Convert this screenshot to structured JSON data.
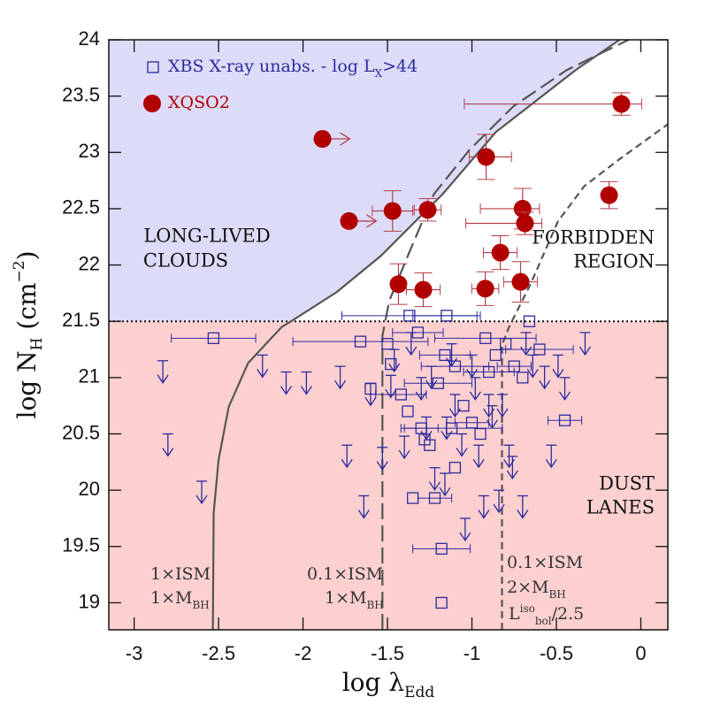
{
  "chart_data": {
    "type": "scatter",
    "x_label": [
      {
        "text": "log λ"
      },
      {
        "text": "Edd",
        "shift": "sub"
      }
    ],
    "y_label": [
      {
        "text": "log N"
      },
      {
        "text": "H",
        "shift": "sub"
      },
      {
        "text": " (cm"
      },
      {
        "text": "−2",
        "shift": "sup"
      },
      {
        "text": ")"
      }
    ],
    "xlim": [
      -3.15,
      0.16
    ],
    "ylim": [
      18.76,
      24
    ],
    "xticks": [
      -3,
      -2.5,
      -2,
      -1.5,
      -1,
      -0.5,
      0
    ],
    "yticks": [
      19,
      19.5,
      20,
      20.5,
      21,
      21.5,
      22,
      22.5,
      23,
      23.5,
      24
    ],
    "hline": 21.5,
    "upper_region_color": "#dcdcf8",
    "lower_region_color": "#fdd0d0",
    "series": [
      {
        "name": [
          {
            "text": "XBS X-ray unabs. - log L"
          },
          {
            "text": "X",
            "shift": "sub"
          },
          {
            "text": ">44"
          }
        ],
        "marker": "square",
        "color": "#2b2b9e",
        "x": [
          -2.53,
          -1.37,
          -1.15,
          -1.66,
          -1.48,
          -1.42,
          -1.38,
          -1.3,
          -1.28,
          -1.25,
          -1.2,
          -1.16,
          -1.1,
          -1.05,
          -1.0,
          -0.95,
          -0.9,
          -0.86,
          -0.8,
          -0.75,
          -0.7,
          -0.6,
          -0.45,
          -1.35,
          -1.22,
          -1.18,
          -1.18,
          -1.1,
          -1.32,
          -0.66,
          -1.5,
          -1.6,
          -1.12,
          -0.92,
          -2.83,
          -2.8,
          -2.6,
          -2.24,
          -2.1,
          -1.98,
          -1.78,
          -1.74,
          -1.64,
          -1.6,
          -1.53,
          -1.46,
          -1.4,
          -1.36,
          -1.3,
          -1.27,
          -1.24,
          -1.22,
          -1.16,
          -1.15,
          -1.1,
          -1.06,
          -1.04,
          -1.0,
          -0.98,
          -0.96,
          -0.93,
          -0.9,
          -0.88,
          -0.84,
          -0.82,
          -0.78,
          -0.76,
          -0.7,
          -0.68,
          -0.64,
          -0.57,
          -0.53,
          -0.49,
          -0.45,
          -0.33,
          -1.48,
          -1.12
        ],
        "y": [
          21.35,
          21.55,
          21.55,
          21.32,
          21.12,
          20.85,
          20.7,
          20.55,
          20.45,
          20.4,
          20.95,
          21.2,
          21.1,
          20.75,
          20.6,
          20.5,
          21.05,
          21.2,
          21.3,
          21.1,
          21.0,
          21.25,
          20.62,
          19.93,
          19.93,
          19.48,
          19.0,
          20.2,
          21.4,
          21.5,
          21.3,
          20.9,
          20.55,
          21.35,
          21.15,
          20.5,
          20.08,
          21.2,
          21.05,
          21.05,
          21.1,
          20.4,
          19.95,
          20.95,
          20.38,
          21.25,
          20.48,
          21.4,
          21.0,
          20.65,
          21.1,
          20.2,
          20.15,
          20.65,
          20.85,
          20.5,
          19.75,
          21.2,
          21.0,
          20.4,
          19.95,
          20.85,
          20.75,
          20.0,
          20.85,
          20.4,
          20.3,
          19.95,
          21.4,
          21.2,
          21.1,
          20.4,
          21.2,
          21.0,
          21.4,
          21.02,
          21.3
        ],
        "xerr": [
          0.25,
          0.4,
          0.2,
          0.4,
          null,
          0.15,
          null,
          0.1,
          null,
          null,
          0.2,
          0.15,
          0.2,
          null,
          0.1,
          null,
          0.15,
          null,
          null,
          0.1,
          null,
          0.2,
          0.1,
          null,
          0.1,
          0.17,
          null,
          null,
          0.15,
          null,
          null,
          null,
          0.3,
          0.3,
          null,
          null,
          null,
          null,
          null,
          null,
          null,
          null,
          null,
          null,
          null,
          null,
          null,
          null,
          null,
          null,
          null,
          null,
          null,
          null,
          null,
          null,
          null,
          null,
          null,
          null,
          null,
          null,
          null,
          null,
          null,
          null,
          null,
          null,
          null,
          null,
          null,
          null,
          null,
          null,
          null,
          null,
          null
        ],
        "upper_limit": [
          false,
          false,
          false,
          false,
          false,
          false,
          false,
          false,
          false,
          false,
          false,
          false,
          false,
          false,
          false,
          false,
          false,
          false,
          false,
          false,
          false,
          false,
          false,
          false,
          false,
          false,
          false,
          false,
          false,
          false,
          false,
          false,
          false,
          false,
          true,
          true,
          true,
          true,
          true,
          true,
          true,
          true,
          true,
          true,
          true,
          true,
          true,
          true,
          true,
          true,
          true,
          true,
          true,
          true,
          true,
          true,
          true,
          true,
          true,
          true,
          true,
          true,
          true,
          true,
          true,
          true,
          true,
          true,
          true,
          true,
          true,
          true,
          true,
          true,
          true,
          true,
          true
        ]
      },
      {
        "name": [
          {
            "text": "XQSO2"
          }
        ],
        "marker": "circle",
        "color": "#b00000",
        "err_color": "#b5404a",
        "x": [
          -1.885,
          -1.728,
          -1.47,
          -1.262,
          -0.916,
          -0.115,
          -0.188,
          -0.7,
          -0.686,
          -0.832,
          -1.435,
          -1.288,
          -0.921,
          -0.712
        ],
        "y": [
          23.12,
          22.39,
          22.48,
          22.49,
          22.96,
          23.43,
          22.62,
          22.5,
          22.37,
          22.11,
          21.83,
          21.78,
          21.79,
          21.85
        ],
        "xerr": [
          null,
          null,
          [
            0.12,
            0.12
          ],
          [
            0.08,
            0.08
          ],
          [
            0.1,
            0.15
          ],
          [
            0.93,
            0.12
          ],
          null,
          [
            0.25,
            0.1
          ],
          [
            0.35,
            0.1
          ],
          [
            0.1,
            0.1
          ],
          null,
          [
            0.1,
            0.1
          ],
          [
            0.08,
            0.08
          ],
          [
            0.1,
            0.1
          ]
        ],
        "yerr": [
          null,
          null,
          0.18,
          0.1,
          0.2,
          0.1,
          0.12,
          0.18,
          0.1,
          0.15,
          0.18,
          0.15,
          0.15,
          0.18
        ],
        "x_lower_limit": [
          true,
          true,
          false,
          false,
          false,
          false,
          false,
          false,
          false,
          false,
          false,
          false,
          false,
          false
        ]
      }
    ],
    "curves": [
      {
        "style": "solid",
        "color": "#555",
        "x": [
          -2.534,
          -2.529,
          -2.5,
          -2.44,
          -2.325,
          -2.126,
          -2.06,
          -1.8,
          -1.54,
          -1.173,
          -0.859,
          -0.387,
          -0.126
        ],
        "y": [
          18.76,
          19.8,
          20.27,
          20.74,
          21.13,
          21.45,
          21.51,
          21.76,
          22.08,
          22.63,
          23.18,
          23.73,
          24.0
        ],
        "label": [
          [
            {
              "text": "1×ISM"
            }
          ],
          [
            {
              "text": "1×M"
            },
            {
              "text": "BH",
              "shift": "sub"
            }
          ]
        ]
      },
      {
        "style": "longdash",
        "color": "#555",
        "x": [
          -1.53,
          -1.53,
          -1.49,
          -1.38,
          -1.225,
          -1.016,
          -0.754,
          -0.44,
          -0.073
        ],
        "y": [
          18.76,
          21.37,
          21.68,
          22.08,
          22.63,
          23.02,
          23.41,
          23.73,
          24.0
        ],
        "label": [
          [
            {
              "text": "0.1×ISM"
            }
          ],
          [
            {
              "text": "1×M"
            },
            {
              "text": "BH",
              "shift": "sub"
            }
          ]
        ]
      },
      {
        "style": "shortdash",
        "color": "#555",
        "x": [
          -0.822,
          -0.822,
          -0.78,
          -0.65,
          -0.49,
          -0.335,
          -0.126,
          0.16
        ],
        "y": [
          18.76,
          21.29,
          21.45,
          21.84,
          22.39,
          22.7,
          22.94,
          23.25
        ],
        "label": [
          [
            {
              "text": "0.1×ISM"
            }
          ],
          [
            {
              "text": "2×M"
            },
            {
              "text": "BH",
              "shift": "sub"
            }
          ],
          [
            {
              "text": "L"
            },
            {
              "text": "iso",
              "shift": "sup"
            },
            {
              "text": "bol",
              "shift": "sub"
            },
            {
              "text": "/2.5"
            }
          ]
        ]
      }
    ],
    "region_labels": [
      [
        "LONG-LIVED",
        "CLOUDS"
      ],
      [
        "FORBIDDEN",
        "REGION"
      ],
      [
        "DUST",
        "LANES"
      ]
    ]
  }
}
